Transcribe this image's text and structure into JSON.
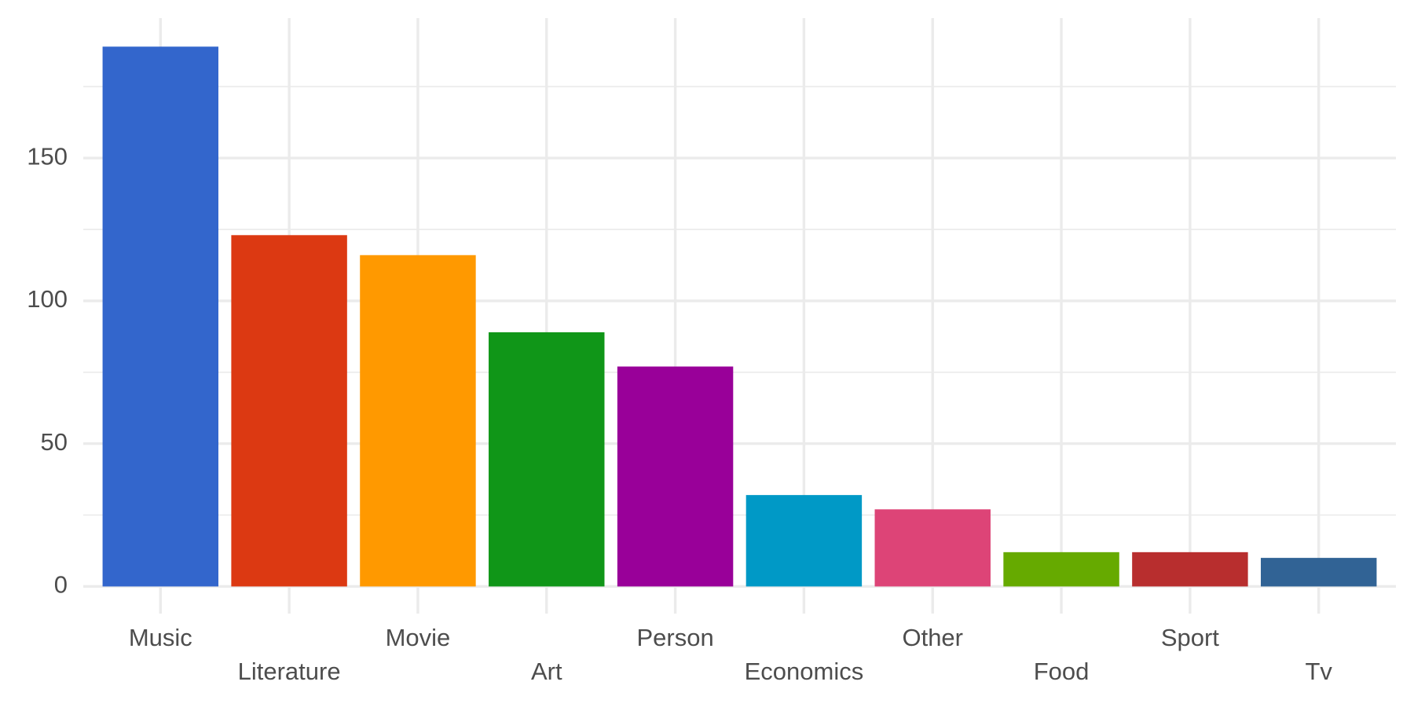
{
  "chart_data": {
    "type": "bar",
    "categories": [
      "Music",
      "Literature",
      "Movie",
      "Art",
      "Person",
      "Economics",
      "Other",
      "Food",
      "Sport",
      "Tv"
    ],
    "values": [
      189,
      123,
      116,
      89,
      77,
      32,
      27,
      12,
      12,
      10
    ],
    "colors": [
      "#3366cc",
      "#dc3912",
      "#ff9900",
      "#109618",
      "#990099",
      "#0099c6",
      "#dd4477",
      "#66aa00",
      "#b82e2e",
      "#316395"
    ],
    "ylim": [
      -9.5,
      199
    ],
    "yticks": [
      0,
      50,
      100,
      150
    ],
    "minor_yticks": [
      25,
      75,
      125,
      175
    ],
    "grid": true
  }
}
